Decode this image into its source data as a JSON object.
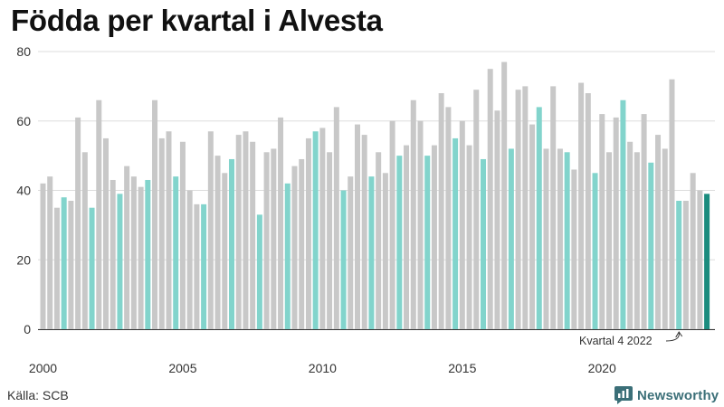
{
  "title": "Födda per kvartal i Alvesta",
  "source": "Källa: SCB",
  "brand": "Newsworthy",
  "colors": {
    "bar": "#c8c8c8",
    "highlight": "#82d4cc",
    "latest": "#1b8c7e",
    "grid": "#dddddd",
    "brand": "#3b6f78"
  },
  "chart_data": {
    "type": "bar",
    "title": "Födda per kvartal i Alvesta",
    "xlabel": "",
    "ylabel": "",
    "ylim": [
      0,
      80
    ],
    "yticks": [
      0,
      20,
      40,
      60,
      80
    ],
    "xticks": [
      "2000",
      "2005",
      "2010",
      "2015",
      "2020"
    ],
    "grid": true,
    "highlight_quarter": "Q4",
    "annotation": {
      "label": "Kvartal 4 2022",
      "target": "2022 Q4"
    },
    "series": [
      {
        "name": "Födda",
        "categories": [
          "2000 Q1",
          "2000 Q2",
          "2000 Q3",
          "2000 Q4",
          "2001 Q1",
          "2001 Q2",
          "2001 Q3",
          "2001 Q4",
          "2002 Q1",
          "2002 Q2",
          "2002 Q3",
          "2002 Q4",
          "2003 Q1",
          "2003 Q2",
          "2003 Q3",
          "2003 Q4",
          "2004 Q1",
          "2004 Q2",
          "2004 Q3",
          "2004 Q4",
          "2005 Q1",
          "2005 Q2",
          "2005 Q3",
          "2005 Q4",
          "2006 Q1",
          "2006 Q2",
          "2006 Q3",
          "2006 Q4",
          "2007 Q1",
          "2007 Q2",
          "2007 Q3",
          "2007 Q4",
          "2008 Q1",
          "2008 Q2",
          "2008 Q3",
          "2008 Q4",
          "2009 Q1",
          "2009 Q2",
          "2009 Q3",
          "2009 Q4",
          "2010 Q1",
          "2010 Q2",
          "2010 Q3",
          "2010 Q4",
          "2011 Q1",
          "2011 Q2",
          "2011 Q3",
          "2011 Q4",
          "2012 Q1",
          "2012 Q2",
          "2012 Q3",
          "2012 Q4",
          "2013 Q1",
          "2013 Q2",
          "2013 Q3",
          "2013 Q4",
          "2014 Q1",
          "2014 Q2",
          "2014 Q3",
          "2014 Q4",
          "2015 Q1",
          "2015 Q2",
          "2015 Q3",
          "2015 Q4",
          "2016 Q1",
          "2016 Q2",
          "2016 Q3",
          "2016 Q4",
          "2017 Q1",
          "2017 Q2",
          "2017 Q3",
          "2017 Q4",
          "2018 Q1",
          "2018 Q2",
          "2018 Q3",
          "2018 Q4",
          "2019 Q1",
          "2019 Q2",
          "2019 Q3",
          "2019 Q4",
          "2020 Q1",
          "2020 Q2",
          "2020 Q3",
          "2020 Q4",
          "2021 Q1",
          "2021 Q2",
          "2021 Q3",
          "2021 Q4",
          "2022 Q1",
          "2022 Q2",
          "2022 Q3",
          "2022 Q4",
          "2023 Q1",
          "2023 Q2",
          "2023 Q3",
          "2023 Q4"
        ],
        "values": [
          42,
          44,
          35,
          38,
          37,
          61,
          51,
          35,
          66,
          55,
          43,
          39,
          47,
          44,
          41,
          43,
          66,
          55,
          57,
          44,
          54,
          40,
          36,
          36,
          57,
          50,
          45,
          49,
          56,
          57,
          54,
          33,
          51,
          52,
          61,
          42,
          47,
          49,
          55,
          57,
          58,
          51,
          64,
          40,
          44,
          59,
          56,
          44,
          51,
          45,
          60,
          50,
          53,
          66,
          60,
          50,
          53,
          68,
          64,
          55,
          60,
          53,
          69,
          49,
          75,
          63,
          77,
          52,
          69,
          70,
          59,
          64,
          52,
          70,
          52,
          51,
          46,
          71,
          68,
          45,
          62,
          51,
          61,
          66,
          54,
          51,
          62,
          48,
          56,
          52,
          72,
          37,
          37,
          45,
          40,
          39
        ]
      }
    ]
  }
}
